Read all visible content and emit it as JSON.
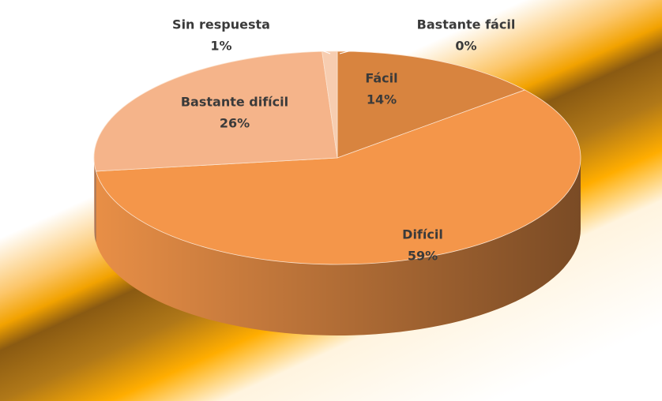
{
  "chart_data": {
    "type": "pie",
    "categories": [
      "Bastante fácil",
      "Fácil",
      "Difícil",
      "Bastante difícil",
      "Sin respuesta"
    ],
    "values": [
      0,
      14,
      59,
      26,
      1
    ],
    "value_labels": [
      "0%",
      "14%",
      "59%",
      "26%",
      "1%"
    ],
    "colors": [
      "#c8702c",
      "#d8843f",
      "#f4964a",
      "#f5b48a",
      "#f7cdb0"
    ]
  }
}
